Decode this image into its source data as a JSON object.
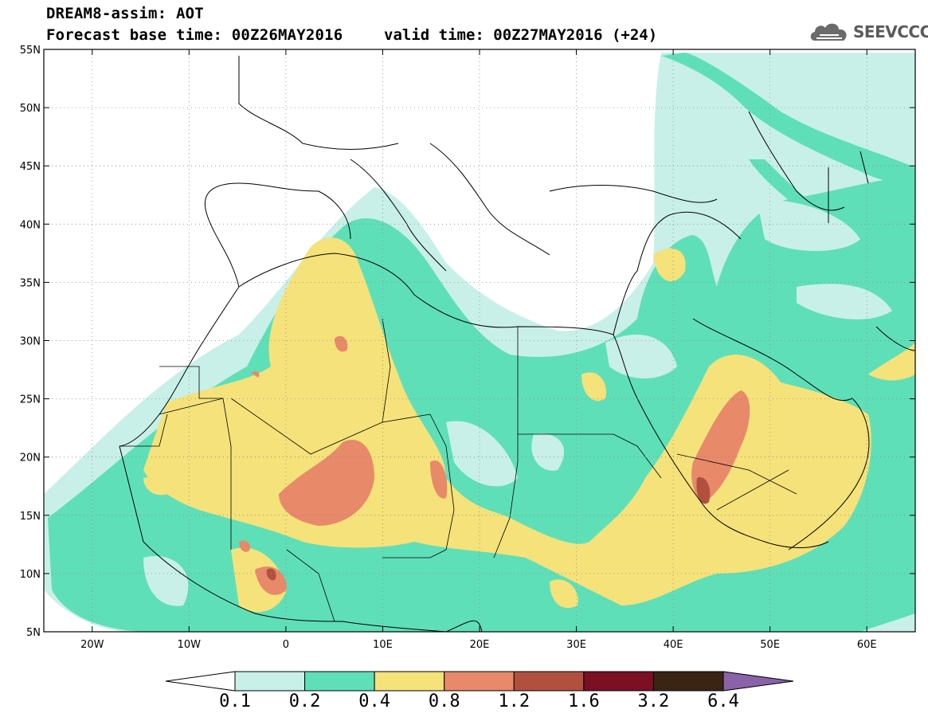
{
  "title": {
    "line1": "DREAM8-assim: AOT",
    "line2": "Forecast base time: 00Z26MAY2016",
    "valid": "valid time: 00Z27MAY2016 (+24)"
  },
  "logo": {
    "text": "SEEVCCC",
    "icon": "cloud-icon"
  },
  "map": {
    "lat_labels": [
      "55N",
      "50N",
      "45N",
      "40N",
      "35N",
      "30N",
      "25N",
      "20N",
      "15N",
      "10N",
      "5N"
    ],
    "lon_labels": [
      "20W",
      "10W",
      "0",
      "10E",
      "20E",
      "30E",
      "40E",
      "50E",
      "60E"
    ],
    "lat_values": [
      55,
      50,
      45,
      40,
      35,
      30,
      25,
      20,
      15,
      10,
      5
    ],
    "lon_values": [
      -20,
      -10,
      0,
      10,
      20,
      30,
      40,
      50,
      60
    ],
    "lon_range": [
      -25,
      65
    ],
    "lat_range": [
      5,
      55
    ]
  },
  "colorbar": {
    "labels": [
      "0.1",
      "0.2",
      "0.4",
      "0.8",
      "1.2",
      "1.6",
      "3.2",
      "6.4"
    ],
    "colors": [
      "#ffffff",
      "#c8f0e8",
      "#5fdfb8",
      "#f5e27a",
      "#e8896a",
      "#b25040",
      "#7b0f24",
      "#3a2515",
      "#8a62a8"
    ]
  },
  "colors": {
    "c1": "#c8f0e8",
    "c2": "#5fdfb8",
    "c3": "#f5e27a",
    "c4": "#e8896a",
    "c5": "#b25040"
  }
}
